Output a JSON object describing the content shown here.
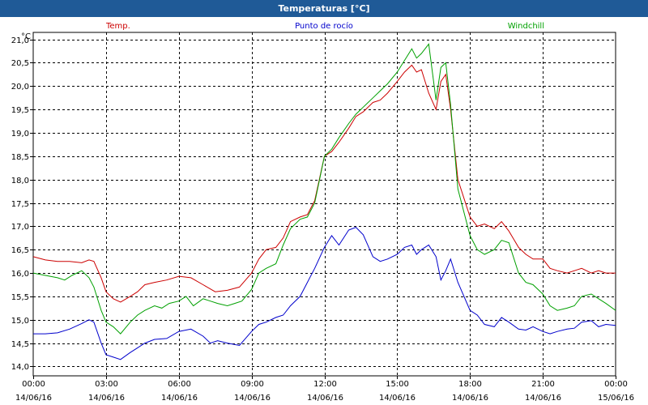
{
  "window": {
    "title": "Temperaturas [°C]"
  },
  "chart_data": {
    "type": "line",
    "title": "Temperaturas [°C]",
    "ylabel": "°C",
    "xlabel": "",
    "ylim": [
      13.8,
      21.15
    ],
    "xlim": [
      0,
      24
    ],
    "grid": true,
    "legend_placement": "top",
    "y_ticks": [
      {
        "v": 14.0,
        "label": "14,0"
      },
      {
        "v": 14.5,
        "label": "14,5"
      },
      {
        "v": 15.0,
        "label": "15,0"
      },
      {
        "v": 15.5,
        "label": "15,5"
      },
      {
        "v": 16.0,
        "label": "16,0"
      },
      {
        "v": 16.5,
        "label": "16,5"
      },
      {
        "v": 17.0,
        "label": "17,0"
      },
      {
        "v": 17.5,
        "label": "17,5"
      },
      {
        "v": 18.0,
        "label": "18,0"
      },
      {
        "v": 18.5,
        "label": "18,5"
      },
      {
        "v": 19.0,
        "label": "19,0"
      },
      {
        "v": 19.5,
        "label": "19,5"
      },
      {
        "v": 20.0,
        "label": "20,0"
      },
      {
        "v": 20.5,
        "label": "20,5"
      },
      {
        "v": 21.0,
        "label": "21,0"
      }
    ],
    "x_ticks": [
      {
        "v": 0,
        "time": "00:00",
        "date": "14/06/16"
      },
      {
        "v": 3,
        "time": "03:00",
        "date": "14/06/16"
      },
      {
        "v": 6,
        "time": "06:00",
        "date": "14/06/16"
      },
      {
        "v": 9,
        "time": "09:00",
        "date": "14/06/16"
      },
      {
        "v": 12,
        "time": "12:00",
        "date": "14/06/16"
      },
      {
        "v": 15,
        "time": "15:00",
        "date": "14/06/16"
      },
      {
        "v": 18,
        "time": "18:00",
        "date": "14/06/16"
      },
      {
        "v": 21,
        "time": "21:00",
        "date": "14/06/16"
      },
      {
        "v": 24,
        "time": "00:00",
        "date": "15/06/16"
      }
    ],
    "series": [
      {
        "name": "Temp.",
        "color": "#cc0000",
        "points": [
          [
            0,
            16.35
          ],
          [
            0.5,
            16.28
          ],
          [
            1,
            16.25
          ],
          [
            1.5,
            16.25
          ],
          [
            2,
            16.22
          ],
          [
            2.3,
            16.28
          ],
          [
            2.5,
            16.25
          ],
          [
            2.8,
            15.9
          ],
          [
            3,
            15.6
          ],
          [
            3.3,
            15.45
          ],
          [
            3.6,
            15.38
          ],
          [
            4,
            15.5
          ],
          [
            4.3,
            15.6
          ],
          [
            4.6,
            15.75
          ],
          [
            5,
            15.8
          ],
          [
            5.5,
            15.85
          ],
          [
            6,
            15.93
          ],
          [
            6.5,
            15.9
          ],
          [
            7,
            15.75
          ],
          [
            7.5,
            15.6
          ],
          [
            8,
            15.63
          ],
          [
            8.5,
            15.7
          ],
          [
            9,
            16.0
          ],
          [
            9.3,
            16.3
          ],
          [
            9.6,
            16.5
          ],
          [
            10,
            16.55
          ],
          [
            10.3,
            16.75
          ],
          [
            10.6,
            17.1
          ],
          [
            11,
            17.2
          ],
          [
            11.3,
            17.25
          ],
          [
            11.6,
            17.55
          ],
          [
            12,
            18.5
          ],
          [
            12.3,
            18.6
          ],
          [
            12.6,
            18.8
          ],
          [
            13,
            19.1
          ],
          [
            13.3,
            19.35
          ],
          [
            13.6,
            19.45
          ],
          [
            14,
            19.65
          ],
          [
            14.3,
            19.7
          ],
          [
            14.6,
            19.85
          ],
          [
            15,
            20.1
          ],
          [
            15.3,
            20.3
          ],
          [
            15.6,
            20.45
          ],
          [
            15.8,
            20.3
          ],
          [
            16,
            20.35
          ],
          [
            16.3,
            19.85
          ],
          [
            16.6,
            19.5
          ],
          [
            16.8,
            20.1
          ],
          [
            17,
            20.25
          ],
          [
            17.2,
            19.5
          ],
          [
            17.5,
            18.0
          ],
          [
            18,
            17.2
          ],
          [
            18.3,
            17.0
          ],
          [
            18.6,
            17.05
          ],
          [
            19,
            16.95
          ],
          [
            19.3,
            17.1
          ],
          [
            19.6,
            16.9
          ],
          [
            20,
            16.55
          ],
          [
            20.3,
            16.4
          ],
          [
            20.6,
            16.3
          ],
          [
            21,
            16.3
          ],
          [
            21.3,
            16.1
          ],
          [
            21.6,
            16.05
          ],
          [
            22,
            16.0
          ],
          [
            22.3,
            16.05
          ],
          [
            22.6,
            16.1
          ],
          [
            23,
            16.0
          ],
          [
            23.3,
            16.05
          ],
          [
            23.6,
            16.0
          ],
          [
            24,
            16.0
          ]
        ]
      },
      {
        "name": "Punto de rocío",
        "color": "#0000cc",
        "points": [
          [
            0,
            14.7
          ],
          [
            0.5,
            14.7
          ],
          [
            1,
            14.72
          ],
          [
            1.5,
            14.8
          ],
          [
            2,
            14.92
          ],
          [
            2.3,
            15.0
          ],
          [
            2.5,
            14.95
          ],
          [
            2.8,
            14.5
          ],
          [
            3,
            14.25
          ],
          [
            3.3,
            14.2
          ],
          [
            3.6,
            14.15
          ],
          [
            4,
            14.3
          ],
          [
            4.3,
            14.4
          ],
          [
            4.6,
            14.5
          ],
          [
            5,
            14.58
          ],
          [
            5.5,
            14.6
          ],
          [
            6,
            14.75
          ],
          [
            6.5,
            14.8
          ],
          [
            7,
            14.65
          ],
          [
            7.3,
            14.5
          ],
          [
            7.6,
            14.55
          ],
          [
            8,
            14.5
          ],
          [
            8.5,
            14.45
          ],
          [
            9,
            14.75
          ],
          [
            9.3,
            14.9
          ],
          [
            9.6,
            14.95
          ],
          [
            10,
            15.05
          ],
          [
            10.3,
            15.1
          ],
          [
            10.6,
            15.3
          ],
          [
            11,
            15.5
          ],
          [
            11.3,
            15.8
          ],
          [
            11.6,
            16.1
          ],
          [
            12,
            16.55
          ],
          [
            12.3,
            16.8
          ],
          [
            12.6,
            16.6
          ],
          [
            13,
            16.92
          ],
          [
            13.3,
            16.98
          ],
          [
            13.6,
            16.82
          ],
          [
            14,
            16.35
          ],
          [
            14.3,
            16.25
          ],
          [
            14.6,
            16.3
          ],
          [
            15,
            16.4
          ],
          [
            15.3,
            16.55
          ],
          [
            15.6,
            16.6
          ],
          [
            15.8,
            16.4
          ],
          [
            16,
            16.5
          ],
          [
            16.3,
            16.6
          ],
          [
            16.6,
            16.35
          ],
          [
            16.8,
            15.85
          ],
          [
            17,
            16.05
          ],
          [
            17.2,
            16.3
          ],
          [
            17.5,
            15.8
          ],
          [
            18,
            15.2
          ],
          [
            18.3,
            15.1
          ],
          [
            18.6,
            14.9
          ],
          [
            19,
            14.85
          ],
          [
            19.3,
            15.05
          ],
          [
            19.6,
            14.95
          ],
          [
            20,
            14.8
          ],
          [
            20.3,
            14.78
          ],
          [
            20.6,
            14.85
          ],
          [
            21,
            14.75
          ],
          [
            21.3,
            14.7
          ],
          [
            21.6,
            14.75
          ],
          [
            22,
            14.8
          ],
          [
            22.3,
            14.82
          ],
          [
            22.6,
            14.95
          ],
          [
            23,
            14.98
          ],
          [
            23.3,
            14.85
          ],
          [
            23.6,
            14.9
          ],
          [
            24,
            14.88
          ]
        ]
      },
      {
        "name": "Windchill",
        "color": "#00a000",
        "points": [
          [
            0,
            16.0
          ],
          [
            0.5,
            15.95
          ],
          [
            1,
            15.9
          ],
          [
            1.3,
            15.85
          ],
          [
            1.6,
            15.95
          ],
          [
            2,
            16.05
          ],
          [
            2.3,
            15.9
          ],
          [
            2.5,
            15.7
          ],
          [
            2.8,
            15.2
          ],
          [
            3,
            14.95
          ],
          [
            3.3,
            14.85
          ],
          [
            3.6,
            14.7
          ],
          [
            4,
            14.95
          ],
          [
            4.3,
            15.1
          ],
          [
            4.6,
            15.2
          ],
          [
            5,
            15.3
          ],
          [
            5.3,
            15.25
          ],
          [
            5.6,
            15.35
          ],
          [
            6,
            15.4
          ],
          [
            6.3,
            15.5
          ],
          [
            6.6,
            15.3
          ],
          [
            7,
            15.45
          ],
          [
            7.3,
            15.4
          ],
          [
            7.6,
            15.35
          ],
          [
            8,
            15.3
          ],
          [
            8.3,
            15.35
          ],
          [
            8.6,
            15.4
          ],
          [
            9,
            15.65
          ],
          [
            9.3,
            16.0
          ],
          [
            9.6,
            16.1
          ],
          [
            10,
            16.2
          ],
          [
            10.3,
            16.6
          ],
          [
            10.6,
            16.95
          ],
          [
            11,
            17.15
          ],
          [
            11.3,
            17.2
          ],
          [
            11.6,
            17.5
          ],
          [
            12,
            18.5
          ],
          [
            12.3,
            18.65
          ],
          [
            12.6,
            18.9
          ],
          [
            13,
            19.2
          ],
          [
            13.3,
            19.4
          ],
          [
            13.6,
            19.55
          ],
          [
            14,
            19.75
          ],
          [
            14.3,
            19.9
          ],
          [
            14.6,
            20.05
          ],
          [
            15,
            20.3
          ],
          [
            15.3,
            20.55
          ],
          [
            15.6,
            20.8
          ],
          [
            15.8,
            20.6
          ],
          [
            16,
            20.7
          ],
          [
            16.3,
            20.9
          ],
          [
            16.6,
            19.7
          ],
          [
            16.8,
            20.4
          ],
          [
            17,
            20.5
          ],
          [
            17.2,
            19.6
          ],
          [
            17.5,
            17.8
          ],
          [
            18,
            16.8
          ],
          [
            18.3,
            16.5
          ],
          [
            18.6,
            16.4
          ],
          [
            19,
            16.5
          ],
          [
            19.3,
            16.7
          ],
          [
            19.6,
            16.65
          ],
          [
            20,
            16.0
          ],
          [
            20.3,
            15.8
          ],
          [
            20.6,
            15.75
          ],
          [
            21,
            15.55
          ],
          [
            21.3,
            15.3
          ],
          [
            21.6,
            15.2
          ],
          [
            22,
            15.25
          ],
          [
            22.3,
            15.3
          ],
          [
            22.6,
            15.5
          ],
          [
            23,
            15.55
          ],
          [
            23.3,
            15.45
          ],
          [
            23.6,
            15.35
          ],
          [
            24,
            15.2
          ]
        ]
      }
    ]
  }
}
